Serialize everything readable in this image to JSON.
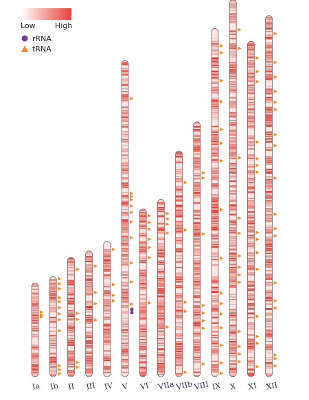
{
  "legend": {
    "low_label": "Low",
    "high_label": "High",
    "gradient_colors": [
      "#ffffff",
      "#e8423a"
    ],
    "items": [
      {
        "label": "rRNA",
        "shape": "circle",
        "color": "#7a3d98"
      },
      {
        "label": "tRNA",
        "shape": "triangle",
        "color": "#f28c1e"
      }
    ]
  },
  "colors": {
    "band_high": "#e8423a",
    "band_low": "#fbe3e1",
    "outline": "#6b6b6b",
    "trna": "#f28c1e",
    "rrna": "#7a3d98"
  },
  "chart_data": {
    "type": "ideogram",
    "note_on_positions": "feature positions are fractions along each chromosome from top (0) to bottom (1)",
    "chromosomes": [
      {
        "name": "Ia",
        "length": 0.29,
        "trna": [
          0.31,
          0.34,
          0.36
        ],
        "rrna": []
      },
      {
        "name": "Ib",
        "length": 0.31,
        "trna": [
          0.02,
          0.07,
          0.12,
          0.21,
          0.25,
          0.31,
          0.37,
          0.43,
          0.54,
          0.89,
          0.93,
          0.97
        ],
        "rrna": []
      },
      {
        "name": "II",
        "length": 0.37,
        "trna": [
          0.1,
          0.47,
          0.52,
          0.88,
          0.92
        ],
        "rrna": []
      },
      {
        "name": "III",
        "length": 0.39,
        "trna": [
          0.12,
          0.33,
          0.42,
          0.55
        ],
        "rrna": []
      },
      {
        "name": "IV",
        "length": 0.42,
        "trna": [
          0.06,
          0.32,
          0.4,
          0.44
        ],
        "rrna": []
      },
      {
        "name": "V",
        "length": 0.98,
        "trna": [
          0.12,
          0.42,
          0.43,
          0.44,
          0.46,
          0.48,
          0.51,
          0.56,
          0.64,
          0.7,
          0.77
        ],
        "rrna": [
          0.787,
          0.797
        ]
      },
      {
        "name": "VI",
        "length": 0.52,
        "trna": [
          0.04,
          0.08,
          0.12,
          0.18,
          0.23,
          0.29,
          0.56
        ],
        "rrna": []
      },
      {
        "name": "VIIa",
        "length": 0.55,
        "trna": [
          0.08,
          0.11,
          0.14,
          0.19,
          0.72
        ],
        "rrna": []
      },
      {
        "name": "VIIb",
        "length": 0.7,
        "trna": [
          0.14,
          0.35,
          0.67,
          0.71,
          0.98
        ],
        "rrna": []
      },
      {
        "name": "VIII",
        "length": 0.79,
        "trna": [
          0.2,
          0.22,
          0.44,
          0.72,
          0.75,
          0.78,
          0.81,
          0.95
        ],
        "rrna": []
      },
      {
        "name": "IX",
        "length": 1.08,
        "trna": [
          0.05,
          0.07,
          0.15,
          0.21,
          0.29,
          0.33,
          0.38,
          0.52,
          0.66,
          0.76,
          0.79,
          0.82,
          0.86,
          0.91,
          0.96,
          0.99
        ],
        "rrna": []
      },
      {
        "name": "X",
        "length": 1.17,
        "trna": [
          0.08,
          0.13,
          0.42,
          0.58,
          0.62,
          0.68,
          0.71,
          0.73,
          0.75,
          0.88,
          0.92,
          0.94,
          0.96
        ],
        "rrna": []
      },
      {
        "name": "XI",
        "length": 1.04,
        "trna": [
          0.05,
          0.09,
          0.12,
          0.3,
          0.35,
          0.37,
          0.39,
          0.57,
          0.59,
          0.63,
          0.68,
          0.82,
          0.88,
          0.9,
          0.97
        ],
        "rrna": []
      },
      {
        "name": "XII",
        "length": 1.12,
        "trna": [
          0.05,
          0.13,
          0.17,
          0.21,
          0.24,
          0.26,
          0.33,
          0.36,
          0.45,
          0.55,
          0.59,
          0.61,
          0.74,
          0.79,
          0.81,
          0.94,
          0.95,
          0.97
        ],
        "rrna": []
      }
    ]
  }
}
